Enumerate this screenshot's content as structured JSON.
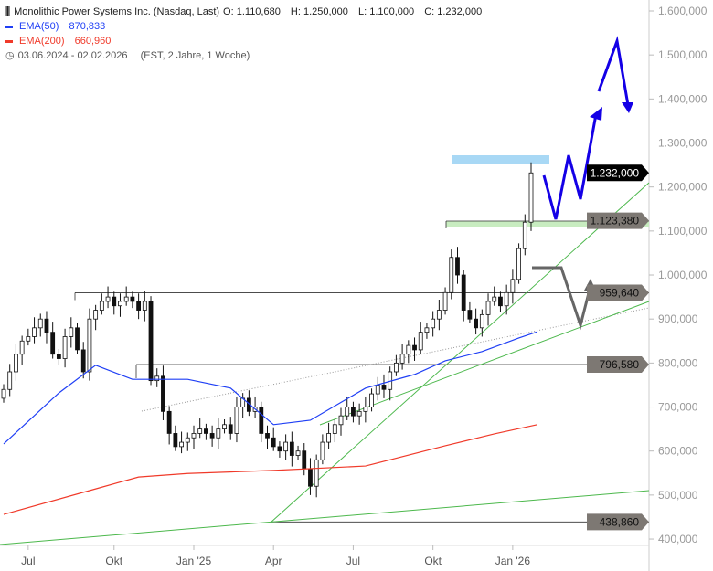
{
  "header": {
    "title": "Monolithic Power Systems Inc. (Nasdaq, Last)",
    "open": "O: 1.110,680",
    "high": "H: 1.250,000",
    "low": "L: 1.100,000",
    "close": "C: 1.232,000",
    "ema50_label": "EMA(50)",
    "ema50_value": "870,833",
    "ema200_label": "EMA(200)",
    "ema200_value": "660,960",
    "range": "03.06.2024 - 02.02.2026",
    "range_info": "(EST, 2 Jahre, 1 Woche)"
  },
  "colors": {
    "ema50": "#1f3ff5",
    "ema200": "#f03a2a",
    "trend": "#4cb84c",
    "arrow": "#1400e6",
    "scenario": "#666666"
  },
  "chart_data": {
    "type": "candlestick",
    "title": "Monolithic Power Systems Inc. (Nasdaq, Last)",
    "ylim": [
      380000,
      1620000
    ],
    "yticks": [
      400000,
      500000,
      600000,
      700000,
      800000,
      900000,
      1000000,
      1100000,
      1200000,
      1300000,
      1400000,
      1500000,
      1600000
    ],
    "ytick_labels": [
      "400,000",
      "500,000",
      "600,000",
      "700,000",
      "800,000",
      "900,000",
      "1.000,000",
      "1.100,000",
      "1.200,000",
      "1.300,000",
      "1.400,000",
      "1.500,000",
      "1.600,000"
    ],
    "xtick_labels": [
      {
        "label": "Jul",
        "week": 4
      },
      {
        "label": "Okt",
        "week": 18
      },
      {
        "label": "Jan '25",
        "week": 31
      },
      {
        "label": "Apr",
        "week": 44
      },
      {
        "label": "Jul",
        "week": 57
      },
      {
        "label": "Okt",
        "week": 70
      },
      {
        "label": "Jan '26",
        "week": 83
      }
    ],
    "weekly_close": [
      740,
      780,
      820,
      850,
      860,
      880,
      900,
      870,
      820,
      810,
      860,
      880,
      830,
      780,
      900,
      920,
      940,
      950,
      930,
      940,
      950,
      940,
      920,
      940,
      760,
      770,
      690,
      640,
      610,
      620,
      630,
      640,
      650,
      640,
      630,
      650,
      660,
      640,
      700,
      720,
      690,
      700,
      640,
      630,
      610,
      600,
      620,
      590,
      600,
      560,
      520,
      580,
      620,
      640,
      660,
      680,
      700,
      680,
      690,
      700,
      730,
      750,
      740,
      780,
      800,
      820,
      840,
      830,
      870,
      880,
      900,
      920,
      960,
      1040,
      1000,
      920,
      900,
      880,
      910,
      940,
      950,
      930,
      960,
      990,
      1060,
      1120,
      1232
    ],
    "ema50": [
      [
        0,
        616
      ],
      [
        9,
        732
      ],
      [
        15,
        795
      ],
      [
        21,
        763
      ],
      [
        30,
        763
      ],
      [
        37,
        743
      ],
      [
        44,
        660
      ],
      [
        50,
        670
      ],
      [
        59,
        743
      ],
      [
        67,
        774
      ],
      [
        72,
        805
      ],
      [
        78,
        826
      ],
      [
        84,
        857
      ],
      [
        87,
        871
      ]
    ],
    "ema200": [
      [
        0,
        456
      ],
      [
        15,
        514
      ],
      [
        22,
        541
      ],
      [
        30,
        549
      ],
      [
        44,
        556
      ],
      [
        59,
        566
      ],
      [
        72,
        612
      ],
      [
        80,
        639
      ],
      [
        87,
        660
      ]
    ],
    "levels": [
      {
        "value": 1232000,
        "label": "1.232,000",
        "style": "last"
      },
      {
        "value": 1123380,
        "label": "1.123,380",
        "style": "zone"
      },
      {
        "value": 959640,
        "label": "959,640",
        "style": "level"
      },
      {
        "value": 796580,
        "label": "796,580",
        "style": "level"
      },
      {
        "value": 438860,
        "label": "438,860",
        "style": "level"
      }
    ]
  }
}
